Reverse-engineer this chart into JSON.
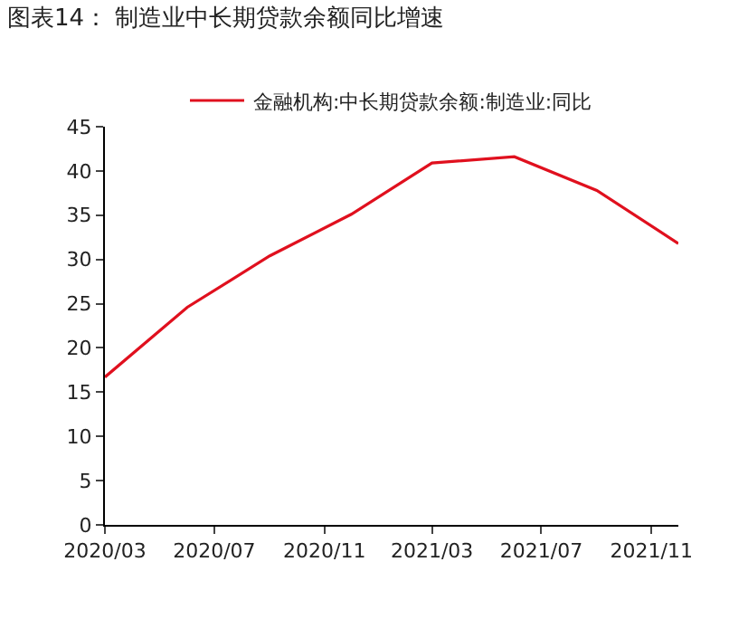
{
  "chart_data": {
    "type": "line",
    "title": "图表14： 制造业中长期贷款余额同比增速",
    "x": [
      "2020-03",
      "2020-06",
      "2020-09",
      "2020-12",
      "2021-03",
      "2021-06",
      "2021-09",
      "2021-12"
    ],
    "series": [
      {
        "name": "金融机构:中长期贷款余额:制造业:同比",
        "color": "#e0101e",
        "values": [
          16.7,
          24.6,
          30.4,
          35.1,
          40.9,
          41.6,
          37.8,
          31.8
        ]
      }
    ],
    "xlim": [
      "2020-03",
      "2021-12"
    ],
    "xticks": [
      {
        "value": "2020-03",
        "label": "2020/03"
      },
      {
        "value": "2020-07",
        "label": "2020/07"
      },
      {
        "value": "2020-11",
        "label": "2020/11"
      },
      {
        "value": "2021-03",
        "label": "2021/03"
      },
      {
        "value": "2021-07",
        "label": "2021/07"
      },
      {
        "value": "2021-11",
        "label": "2021/11"
      }
    ],
    "ylim": [
      0,
      45
    ],
    "yticks": [
      0,
      5,
      10,
      15,
      20,
      25,
      30,
      35,
      40,
      45
    ],
    "legend": "top",
    "marker": "none",
    "line_style": "solid"
  }
}
